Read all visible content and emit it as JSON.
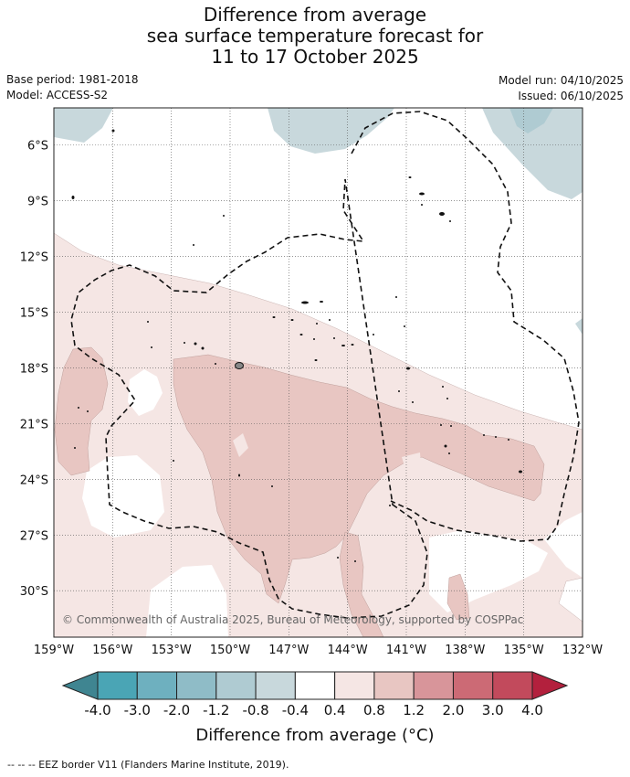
{
  "title": {
    "line1": "Difference from average",
    "line2": "sea surface temperature forecast for",
    "line3": "11 to 17 October 2025"
  },
  "meta": {
    "base_period": "Base period: 1981-2018",
    "model": "Model: ACCESS-S2",
    "model_run": "Model run: 04/10/2025",
    "issued": "Issued: 06/10/2025"
  },
  "map": {
    "lon_range": [
      -159,
      -132
    ],
    "lat_range": [
      -32.5,
      -4
    ],
    "lat_ticks": [
      {
        "value": -6,
        "label": "6°S"
      },
      {
        "value": -9,
        "label": "9°S"
      },
      {
        "value": -12,
        "label": "12°S"
      },
      {
        "value": -15,
        "label": "15°S"
      },
      {
        "value": -18,
        "label": "18°S"
      },
      {
        "value": -21,
        "label": "21°S"
      },
      {
        "value": -24,
        "label": "24°S"
      },
      {
        "value": -27,
        "label": "27°S"
      },
      {
        "value": -30,
        "label": "30°S"
      }
    ],
    "lon_ticks": [
      {
        "value": -159,
        "label": "159°W"
      },
      {
        "value": -156,
        "label": "156°W"
      },
      {
        "value": -153,
        "label": "153°W"
      },
      {
        "value": -150,
        "label": "150°W"
      },
      {
        "value": -147,
        "label": "147°W"
      },
      {
        "value": -144,
        "label": "144°W"
      },
      {
        "value": -141,
        "label": "141°W"
      },
      {
        "value": -138,
        "label": "138°W"
      },
      {
        "value": -135,
        "label": "135°W"
      },
      {
        "value": -132,
        "label": "132°W"
      }
    ],
    "copyright": "© Commonwealth of Australia 2025, Bureau of Meteorology, supported by COSPPac"
  },
  "colorbar": {
    "title": "Difference from average (°C)",
    "ticks": [
      "-4.0",
      "-3.0",
      "-2.0",
      "-1.2",
      "-0.8",
      "-0.4",
      "0.4",
      "0.8",
      "1.2",
      "2.0",
      "3.0",
      "4.0"
    ],
    "colors": [
      "#3f8591",
      "#4aa5b5",
      "#6eb0bf",
      "#8fbcc7",
      "#afcbd2",
      "#c8d8dc",
      "#ffffff",
      "#f5e6e4",
      "#e8c6c2",
      "#d8959a",
      "#cc6a75",
      "#c24a5c",
      "#b3203d"
    ]
  },
  "colors": {
    "cool_light": "#c8d8dc",
    "cool_mid": "#afcbd2",
    "warm_light": "#f5e6e4",
    "warm_mid": "#e8c6c2"
  },
  "footnote": "-- -- -- EEZ border V11 (Flanders Marine Institute, 2019)."
}
